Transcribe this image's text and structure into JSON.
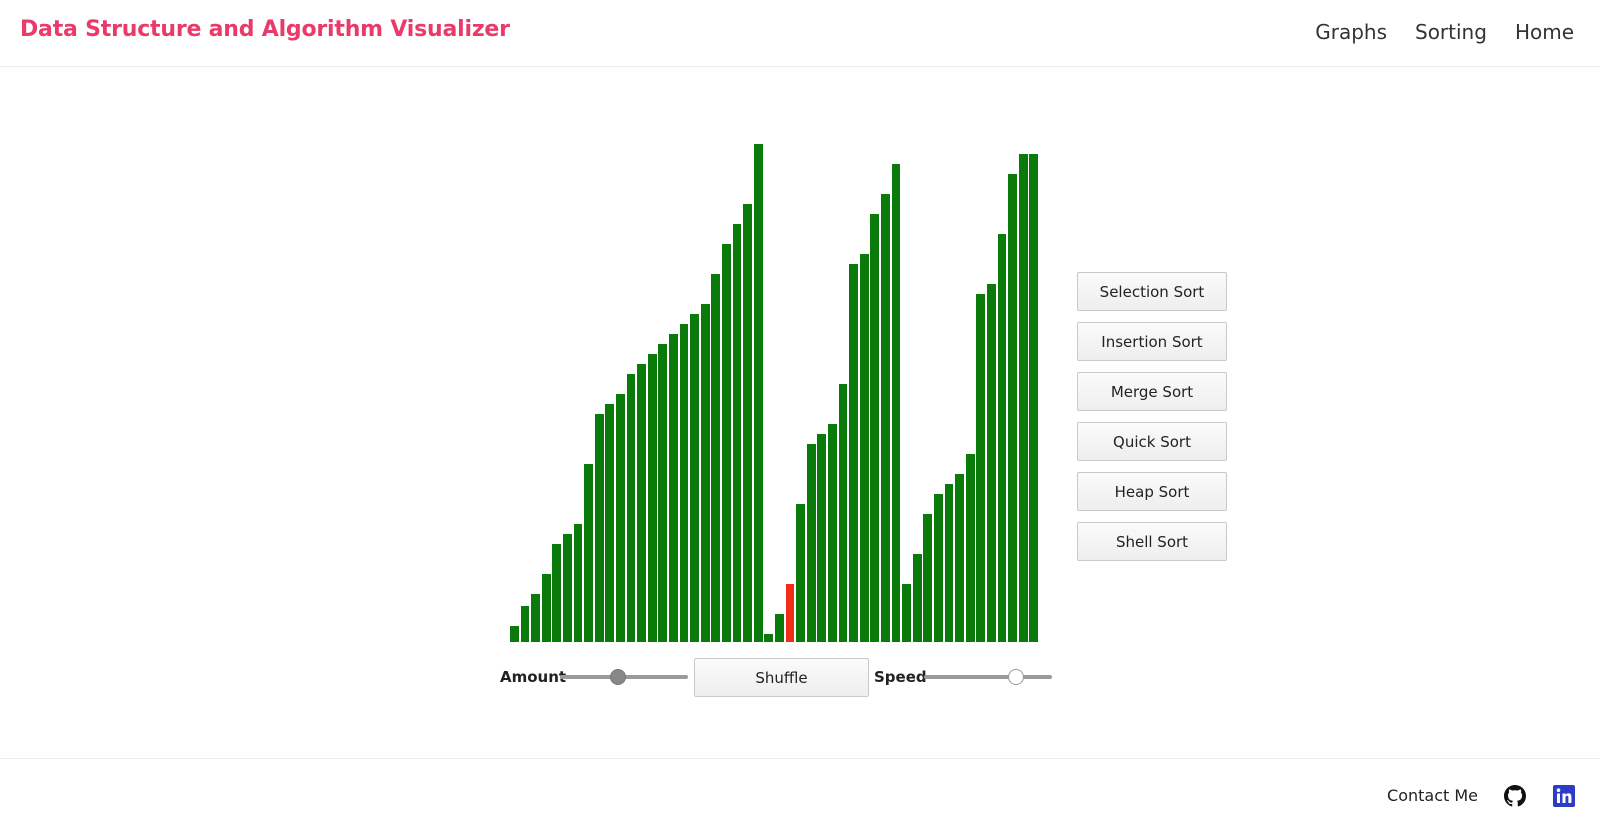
{
  "header": {
    "brand": "Data Structure and Algorithm Visualizer",
    "nav": [
      "Graphs",
      "Sorting",
      "Home"
    ]
  },
  "chart_data": {
    "type": "bar",
    "values": [
      8,
      18,
      24,
      34,
      49,
      54,
      59,
      89,
      114,
      119,
      124,
      134,
      139,
      144,
      149,
      154,
      159,
      164,
      169,
      184,
      199,
      209,
      219,
      249,
      4,
      14,
      29,
      69,
      99,
      104,
      109,
      129,
      189,
      194,
      214,
      224,
      239,
      29,
      44,
      64,
      74,
      79,
      84,
      94,
      174,
      179,
      204,
      234,
      244,
      244
    ],
    "max": 250,
    "colors": [
      "g",
      "g",
      "g",
      "g",
      "g",
      "g",
      "g",
      "g",
      "g",
      "g",
      "g",
      "g",
      "g",
      "g",
      "g",
      "g",
      "g",
      "g",
      "g",
      "g",
      "g",
      "g",
      "g",
      "g",
      "g",
      "g",
      "r",
      "g",
      "g",
      "g",
      "g",
      "g",
      "g",
      "g",
      "g",
      "g",
      "g",
      "g",
      "g",
      "g",
      "g",
      "g",
      "g",
      "g",
      "g",
      "g",
      "g",
      "g",
      "g",
      "g"
    ],
    "palette": {
      "g": "#0a7a0a",
      "r": "#ee2e16"
    }
  },
  "algorithms": [
    "Selection Sort",
    "Insertion Sort",
    "Merge Sort",
    "Quick Sort",
    "Heap Sort",
    "Shell Sort"
  ],
  "controls": {
    "amount_label": "Amount",
    "shuffle_label": "Shuffle",
    "speed_label": "Speed",
    "amount_value": 0.45,
    "speed_value": 0.72
  },
  "footer": {
    "contact": "Contact Me",
    "icons": [
      "github-icon",
      "linkedin-icon"
    ],
    "linkedin_color": "#2c3bc8"
  }
}
